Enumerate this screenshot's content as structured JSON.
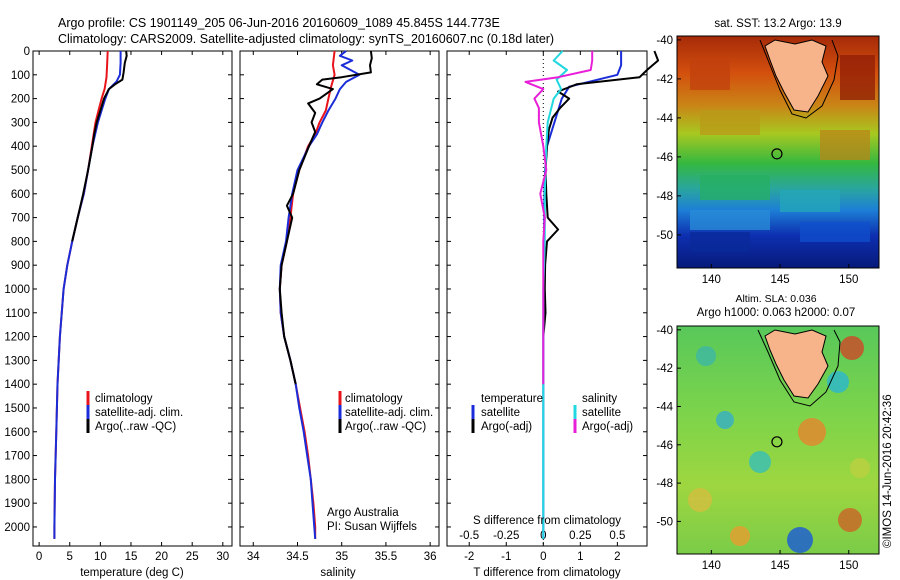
{
  "header": {
    "line1": "Argo profile: CS 1901149_205 06-Jun-2016 20160609_1089 45.845S 144.773E",
    "line2": "Climatology: CARS2009. Satellite-adjusted climatology: synTS_20160607.nc (0.18d later)"
  },
  "credit": "©IMOS 14-Jun-2016 20:42:36",
  "colors": {
    "climatology": "#e8141c",
    "satellite": "#1b2dd8",
    "argo": "#000000",
    "salinity_satellite": "#21d8e0",
    "salinity_argo": "#e81fd8"
  },
  "chart_data": [
    {
      "type": "line",
      "name": "temperature-panel",
      "xlabel": "temperature (deg C)",
      "ylabel": "",
      "xlim": [
        -1,
        31.5
      ],
      "ylim": [
        0,
        2080
      ],
      "xticks": [
        0,
        5,
        10,
        15,
        20,
        25,
        30
      ],
      "yticks": [
        0,
        100,
        200,
        300,
        400,
        500,
        600,
        700,
        800,
        900,
        1000,
        1100,
        1200,
        1300,
        1400,
        1500,
        1600,
        1700,
        1800,
        1900,
        2000
      ],
      "legend": [
        "climatology",
        "satellite-adj. clim.",
        "Argo(..raw -QC)"
      ],
      "series": [
        {
          "name": "climatology",
          "color": "#e8141c",
          "depth": [
            0,
            60,
            110,
            160,
            200,
            250,
            300,
            400,
            500,
            600,
            700,
            800,
            900,
            1000,
            1200,
            1400,
            1600,
            1800,
            2000,
            2050
          ],
          "value": [
            11.2,
            11.1,
            11.0,
            10.7,
            10.2,
            9.7,
            9.2,
            8.6,
            8.0,
            7.3,
            6.3,
            5.4,
            4.6,
            4.0,
            3.4,
            3.0,
            2.8,
            2.6,
            2.5,
            2.5
          ]
        },
        {
          "name": "satellite-adj. clim.",
          "color": "#1b2dd8",
          "depth": [
            0,
            50,
            100,
            130,
            160,
            200,
            250,
            300,
            400,
            500,
            600,
            700,
            800,
            900,
            1000,
            1200,
            1400,
            1600,
            1800,
            2000,
            2050
          ],
          "value": [
            13.3,
            13.3,
            13.2,
            12.6,
            11.4,
            10.8,
            10.2,
            9.6,
            8.7,
            8.0,
            7.3,
            6.3,
            5.4,
            4.6,
            4.0,
            3.4,
            3.0,
            2.8,
            2.6,
            2.5,
            2.5
          ]
        },
        {
          "name": "Argo(..raw -QC)",
          "color": "#000000",
          "depth": [
            0,
            20,
            50,
            90,
            120,
            140,
            160,
            200,
            250,
            300,
            350,
            400,
            500,
            600,
            700,
            800
          ],
          "value": [
            14.2,
            14.3,
            14.0,
            13.8,
            13.6,
            12.4,
            11.4,
            10.6,
            10.0,
            9.4,
            9.0,
            8.7,
            8.0,
            7.2,
            6.3,
            5.4
          ]
        }
      ]
    },
    {
      "type": "line",
      "name": "salinity-panel",
      "xlabel": "salinity",
      "ylabel": "",
      "xlim": [
        33.85,
        36.1
      ],
      "ylim": [
        0,
        2080
      ],
      "xticks": [
        34,
        34.5,
        35,
        35.5,
        36
      ],
      "tick_labels": [
        "34",
        "34.5",
        "35",
        "35.5",
        "36"
      ],
      "legend": [
        "climatology",
        "satellite-adj. clim.",
        "Argo(..raw -QC)"
      ],
      "annotations": [
        "Argo Australia",
        "PI: Susan Wijffels"
      ],
      "series": [
        {
          "name": "climatology",
          "color": "#e8141c",
          "depth": [
            0,
            60,
            100,
            150,
            200,
            250,
            300,
            350,
            400,
            500,
            600,
            700,
            800,
            900,
            1000,
            1100,
            1200,
            1300,
            1400,
            1500,
            1600,
            1700,
            1800,
            1900,
            2000,
            2050
          ],
          "value": [
            34.92,
            34.9,
            34.92,
            34.88,
            34.85,
            34.82,
            34.75,
            34.7,
            34.62,
            34.52,
            34.45,
            34.42,
            34.38,
            34.32,
            34.3,
            34.31,
            34.35,
            34.42,
            34.48,
            34.53,
            34.58,
            34.62,
            34.65,
            34.68,
            34.7,
            34.7
          ]
        },
        {
          "name": "satellite-adj. clim.",
          "color": "#1b2dd8",
          "depth": [
            0,
            20,
            40,
            60,
            80,
            100,
            130,
            160,
            200,
            250,
            300,
            350,
            400,
            500,
            600,
            700,
            800,
            900,
            1000,
            1100,
            1200,
            1300,
            1400,
            1500,
            1600,
            1700,
            1800,
            1900,
            2000,
            2050
          ],
          "value": [
            35.05,
            34.98,
            35.12,
            35.0,
            35.1,
            35.2,
            35.05,
            34.98,
            34.93,
            34.85,
            34.78,
            34.72,
            34.63,
            34.5,
            34.44,
            34.4,
            34.37,
            34.31,
            34.3,
            34.31,
            34.35,
            34.42,
            34.48,
            34.52,
            34.57,
            34.61,
            34.65,
            34.67,
            34.69,
            34.7
          ]
        },
        {
          "name": "Argo(..raw -QC)",
          "color": "#000000",
          "depth": [
            0,
            30,
            60,
            90,
            110,
            120,
            140,
            160,
            200,
            220,
            260,
            300,
            340,
            400,
            500,
            600,
            650,
            700,
            800,
            900,
            1000,
            1100,
            1200,
            1300,
            1400
          ],
          "value": [
            35.33,
            35.34,
            35.32,
            35.33,
            35.0,
            34.78,
            34.72,
            34.9,
            34.75,
            34.62,
            34.7,
            34.66,
            34.7,
            34.63,
            34.52,
            34.45,
            34.38,
            34.44,
            34.38,
            34.32,
            34.3,
            34.32,
            34.35,
            34.42,
            34.48
          ]
        }
      ]
    },
    {
      "type": "line",
      "name": "difference-panel",
      "xlabel": "T difference from climatology",
      "xlabel_top": "S difference from climatology",
      "xlim": [
        -2.6,
        2.8
      ],
      "ylim": [
        0,
        2080
      ],
      "xticks": [
        -2,
        -1,
        0,
        1,
        2
      ],
      "xticks_S": [
        -0.5,
        -0.25,
        0,
        0.25,
        0.5
      ],
      "tick_labels_S": [
        "-0.5",
        "-0.25",
        "0",
        "0.25",
        "0.5"
      ],
      "legend_temperature_title": "temperature",
      "legend_salinity_title": "salinity",
      "legend": [
        "satellite",
        "Argo(-adj)",
        "satellite",
        "Argo(-adj)"
      ],
      "series": [
        {
          "name": "T satellite",
          "color": "#1b2dd8",
          "depth": [
            0,
            60,
            100,
            150,
            200,
            250,
            300,
            400,
            500,
            600,
            800,
            1000,
            1200,
            1500,
            2000,
            2050
          ],
          "value": [
            2.1,
            2.1,
            2.0,
            0.7,
            0.5,
            0.4,
            0.3,
            0.1,
            0.05,
            0.03,
            0.02,
            0.01,
            0.0,
            0.0,
            0.0,
            0.0
          ]
        },
        {
          "name": "T Argo(-adj)",
          "color": "#000000",
          "depth": [
            0,
            40,
            80,
            110,
            140,
            170,
            200,
            240,
            280,
            330,
            400,
            500,
            600,
            700,
            750,
            800,
            900,
            1000,
            1100,
            1200
          ],
          "value": [
            3.0,
            3.1,
            2.8,
            2.6,
            0.9,
            0.4,
            0.7,
            0.45,
            0.25,
            0.15,
            0.1,
            0.06,
            0.08,
            0.12,
            0.4,
            0.1,
            0.05,
            0.04,
            0.06,
            0.0
          ]
        },
        {
          "name": "S satellite",
          "color": "#21d8e0",
          "depth": [
            0,
            40,
            80,
            120,
            160,
            200,
            300,
            400,
            600,
            800,
            1000,
            1200,
            1500,
            2000,
            2050
          ],
          "value": [
            0.13,
            0.07,
            0.16,
            0.09,
            0.12,
            0.07,
            0.03,
            0.02,
            0.01,
            0.01,
            0.0,
            0.0,
            0.0,
            0.0,
            0.0
          ]
        },
        {
          "name": "S Argo(-adj)",
          "color": "#e81fd8",
          "depth": [
            0,
            40,
            80,
            110,
            130,
            160,
            200,
            240,
            300,
            400,
            500,
            600,
            700,
            800,
            1000,
            1200,
            1400
          ],
          "value": [
            0.33,
            0.33,
            0.32,
            0.1,
            -0.12,
            0.0,
            -0.06,
            -0.03,
            -0.03,
            0.0,
            0.02,
            -0.02,
            0.01,
            0.0,
            0.0,
            0.0,
            0.0
          ]
        }
      ]
    },
    {
      "type": "heatmap",
      "name": "sst-map",
      "title": "sat. SST: 13.2  Argo: 13.9",
      "xlim": [
        137.5,
        152.2
      ],
      "ylim": [
        -51.7,
        -39.8
      ],
      "xticks": [
        140,
        145,
        150
      ],
      "yticks": [
        -40,
        -42,
        -44,
        -46,
        -48,
        -50
      ],
      "marker": {
        "lon": 144.773,
        "lat": -45.845
      }
    },
    {
      "type": "heatmap",
      "name": "sla-map",
      "title": "Altim. SLA: 0.036",
      "subtitle": "Argo h1000: 0.063 h2000: 0.07",
      "xlim": [
        137.5,
        152.2
      ],
      "ylim": [
        -51.7,
        -39.8
      ],
      "xticks": [
        140,
        145,
        150
      ],
      "yticks": [
        -40,
        -42,
        -44,
        -46,
        -48,
        -50
      ],
      "marker": {
        "lon": 144.773,
        "lat": -45.845
      }
    }
  ]
}
